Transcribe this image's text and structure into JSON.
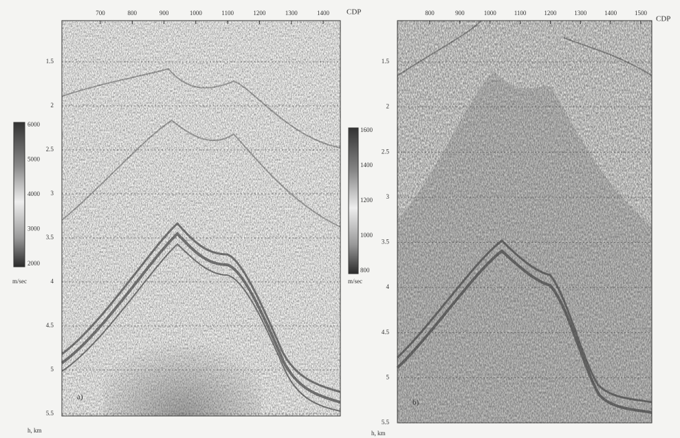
{
  "panels": [
    {
      "label": "a)",
      "x_axis_title": "CDP",
      "x_ticks": [
        "700",
        "800",
        "900",
        "1000",
        "1100",
        "1200",
        "1300",
        "1400"
      ],
      "y_ticks": [
        "1.5",
        "2",
        "2.5",
        "3",
        "3.5",
        "4",
        "4.5",
        "5",
        "5.5"
      ],
      "y_axis_title": "h, km",
      "colorbar": {
        "ticks": [
          "6000",
          "5000",
          "4000",
          "3000",
          "2000"
        ],
        "unit": "m/sec"
      }
    },
    {
      "label": "b)",
      "x_axis_title": "CDP",
      "x_ticks": [
        "800",
        "900",
        "1000",
        "1100",
        "1200",
        "1300",
        "1400",
        "1500"
      ],
      "y_ticks": [
        "1.5",
        "2",
        "2.5",
        "3",
        "3.5",
        "4",
        "4.5",
        "5",
        "5.5"
      ],
      "y_axis_title": "h, km",
      "colorbar": {
        "ticks": [
          "1600",
          "1400",
          "1200",
          "1000",
          "800"
        ],
        "unit": "m/sec"
      }
    }
  ]
}
